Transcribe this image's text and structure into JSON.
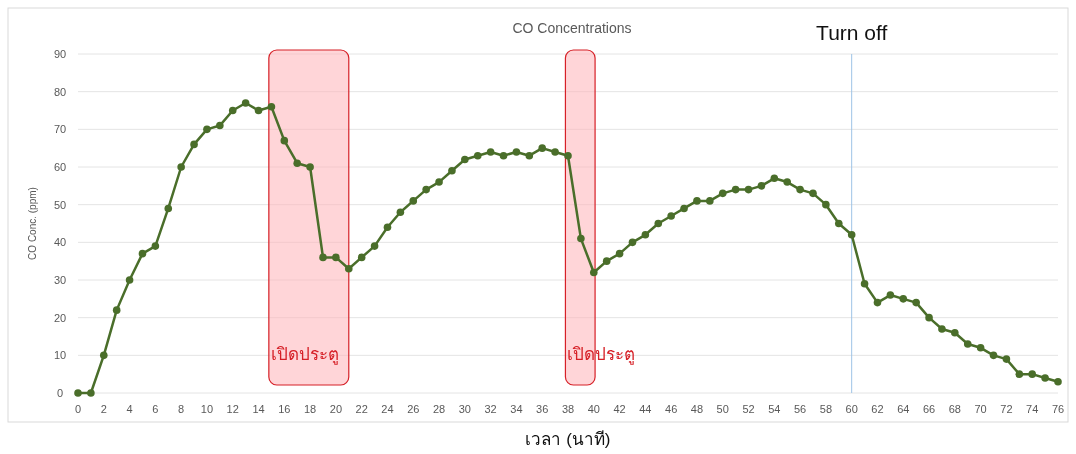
{
  "chart_data": {
    "type": "line",
    "title": "CO Concentrations",
    "xlabel": "เวลา (นาที)",
    "ylabel": "CO Conc. (ppm)",
    "x": [
      0,
      1,
      2,
      3,
      4,
      5,
      6,
      7,
      8,
      9,
      10,
      11,
      12,
      13,
      14,
      15,
      16,
      17,
      18,
      19,
      20,
      21,
      22,
      23,
      24,
      25,
      26,
      27,
      28,
      29,
      30,
      31,
      32,
      33,
      34,
      35,
      36,
      37,
      38,
      39,
      40,
      41,
      42,
      43,
      44,
      45,
      46,
      47,
      48,
      49,
      50,
      51,
      52,
      53,
      54,
      55,
      56,
      57,
      58,
      59,
      60,
      61,
      62,
      63,
      64,
      65,
      66,
      67,
      68,
      69,
      70,
      71,
      72,
      73,
      74,
      75,
      76
    ],
    "series": [
      {
        "color": "#4a6e2a",
        "values": [
          0,
          0,
          10,
          22,
          30,
          37,
          39,
          49,
          60,
          66,
          70,
          71,
          75,
          77,
          75,
          76,
          67,
          61,
          60,
          36,
          36,
          33,
          36,
          39,
          44,
          48,
          51,
          54,
          56,
          59,
          62,
          63,
          64,
          63,
          64,
          63,
          65,
          64,
          63,
          41,
          32,
          35,
          37,
          40,
          42,
          45,
          47,
          49,
          51,
          51,
          53,
          54,
          54,
          55,
          57,
          56,
          54,
          53,
          50,
          45,
          42,
          29,
          24,
          26,
          25,
          24,
          20,
          17,
          16,
          13,
          12,
          10,
          9,
          5,
          5,
          4,
          3
        ]
      }
    ],
    "xlim": [
      0,
      76
    ],
    "xticks": [
      0,
      2,
      4,
      6,
      8,
      10,
      12,
      14,
      16,
      18,
      20,
      22,
      24,
      26,
      28,
      30,
      32,
      34,
      36,
      38,
      40,
      42,
      44,
      46,
      48,
      50,
      52,
      54,
      56,
      58,
      60,
      62,
      64,
      66,
      68,
      70,
      72,
      74,
      76
    ],
    "ylim": [
      0,
      90
    ],
    "yticks": [
      0,
      10,
      20,
      30,
      40,
      50,
      60,
      70,
      80,
      90
    ],
    "bands": [
      {
        "axis": "x",
        "from": 14.8,
        "to": 21,
        "label": "เปิดประตู",
        "color": "#ffb3b8"
      },
      {
        "axis": "x",
        "from": 37.8,
        "to": 40.1,
        "label": "เปิดประตู",
        "color": "#ffb3b8"
      }
    ],
    "ref_lines": [
      {
        "axis": "x",
        "value": 60,
        "label": "Turn off",
        "color": "#9dc3e6"
      }
    ],
    "grid": "y",
    "marker": "circle",
    "line_style": "solid"
  }
}
